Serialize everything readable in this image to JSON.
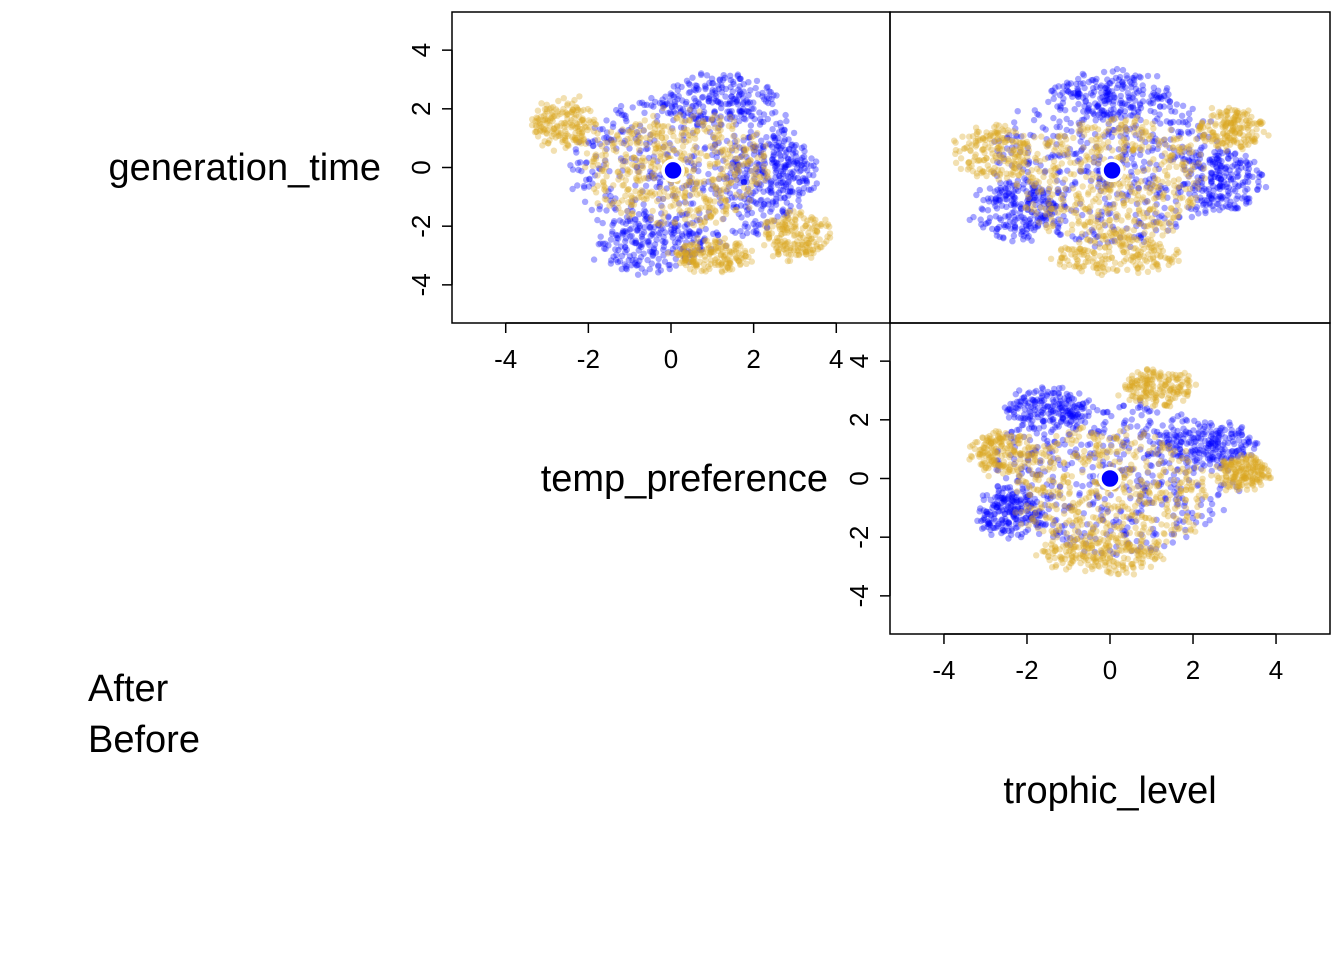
{
  "colors": {
    "after": "#DAA520",
    "before": "#0000FF",
    "centroid_fill": "#0000FF",
    "centroid_ring": "#FFFFFF"
  },
  "variables": [
    "generation_time",
    "temp_preference",
    "trophic_level"
  ],
  "legend": {
    "entries": [
      {
        "label": "After",
        "color": "#DAA520"
      },
      {
        "label": "Before",
        "color": "#0000FF"
      }
    ]
  },
  "axis_ticks": [
    "-4",
    "-2",
    "0",
    "2",
    "4"
  ],
  "chart_data": [
    {
      "type": "scatter",
      "panel": "top-left",
      "x_variable": "temp_preference",
      "y_variable": "generation_time",
      "xlim": [
        -5.3,
        5.3
      ],
      "ylim": [
        -5.3,
        5.3
      ],
      "x_ticks": [
        -4,
        -2,
        0,
        2,
        4
      ],
      "y_ticks": [
        -4,
        -2,
        0,
        2,
        4
      ],
      "series": [
        {
          "name": "Before",
          "color": "#0000FF",
          "blobs": [
            {
              "cx": 0.5,
              "cy": -0.1,
              "rx": 2.9,
              "ry": 2.7
            },
            {
              "cx": 1.2,
              "cy": 2.3,
              "rx": 1.4,
              "ry": 0.9
            },
            {
              "cx": -0.5,
              "cy": -2.6,
              "rx": 1.3,
              "ry": 1.0
            },
            {
              "cx": 2.5,
              "cy": -0.2,
              "rx": 1.0,
              "ry": 1.3
            }
          ]
        },
        {
          "name": "After",
          "color": "#DAA520",
          "blobs": [
            {
              "cx": 0.2,
              "cy": 0.0,
              "rx": 2.2,
              "ry": 2.0
            },
            {
              "cx": -2.6,
              "cy": 1.5,
              "rx": 0.8,
              "ry": 0.8
            },
            {
              "cx": 3.0,
              "cy": -2.3,
              "rx": 0.8,
              "ry": 0.8
            },
            {
              "cx": 1.0,
              "cy": -3.0,
              "rx": 0.9,
              "ry": 0.5
            }
          ]
        }
      ],
      "centroid": {
        "x": 0.05,
        "y": -0.1
      }
    },
    {
      "type": "scatter",
      "panel": "top-right",
      "x_variable": "trophic_level",
      "y_variable": "generation_time",
      "xlim": [
        -5.3,
        5.3
      ],
      "ylim": [
        -5.3,
        5.3
      ],
      "series": [
        {
          "name": "Before",
          "color": "#0000FF",
          "blobs": [
            {
              "cx": 0.0,
              "cy": 0.0,
              "rx": 2.9,
              "ry": 2.7
            },
            {
              "cx": -2.3,
              "cy": -1.5,
              "rx": 1.0,
              "ry": 1.0
            },
            {
              "cx": 2.8,
              "cy": -0.5,
              "rx": 0.9,
              "ry": 1.0
            },
            {
              "cx": 0.0,
              "cy": 2.5,
              "rx": 1.5,
              "ry": 0.8
            }
          ]
        },
        {
          "name": "After",
          "color": "#DAA520",
          "blobs": [
            {
              "cx": 0.0,
              "cy": -0.4,
              "rx": 2.3,
              "ry": 2.2
            },
            {
              "cx": -2.8,
              "cy": 0.5,
              "rx": 0.9,
              "ry": 0.9
            },
            {
              "cx": 2.9,
              "cy": 1.3,
              "rx": 0.8,
              "ry": 0.7
            },
            {
              "cx": 0.2,
              "cy": -3.0,
              "rx": 1.5,
              "ry": 0.6
            }
          ]
        }
      ],
      "centroid": {
        "x": 0.05,
        "y": -0.1
      }
    },
    {
      "type": "scatter",
      "panel": "bottom-right",
      "x_variable": "trophic_level",
      "y_variable": "temp_preference",
      "xlim": [
        -5.3,
        5.3
      ],
      "ylim": [
        -5.3,
        5.3
      ],
      "x_ticks": [
        -4,
        -2,
        0,
        2,
        4
      ],
      "y_ticks": [
        -4,
        -2,
        0,
        2,
        4
      ],
      "series": [
        {
          "name": "Before",
          "color": "#0000FF",
          "blobs": [
            {
              "cx": 0.0,
              "cy": 0.0,
              "rx": 3.0,
              "ry": 2.6
            },
            {
              "cx": -1.5,
              "cy": 2.4,
              "rx": 1.0,
              "ry": 0.7
            },
            {
              "cx": 2.4,
              "cy": 1.2,
              "rx": 1.1,
              "ry": 0.7
            },
            {
              "cx": -2.4,
              "cy": -1.2,
              "rx": 0.8,
              "ry": 0.8
            }
          ]
        },
        {
          "name": "After",
          "color": "#DAA520",
          "blobs": [
            {
              "cx": 0.0,
              "cy": -0.5,
              "rx": 2.3,
              "ry": 2.3
            },
            {
              "cx": 1.1,
              "cy": 3.1,
              "rx": 0.9,
              "ry": 0.6
            },
            {
              "cx": -2.6,
              "cy": 0.9,
              "rx": 0.8,
              "ry": 0.7
            },
            {
              "cx": 3.2,
              "cy": 0.2,
              "rx": 0.6,
              "ry": 0.6
            },
            {
              "cx": -0.2,
              "cy": -2.6,
              "rx": 1.5,
              "ry": 0.6
            }
          ]
        }
      ],
      "centroid": {
        "x": 0.0,
        "y": 0.0
      }
    }
  ]
}
